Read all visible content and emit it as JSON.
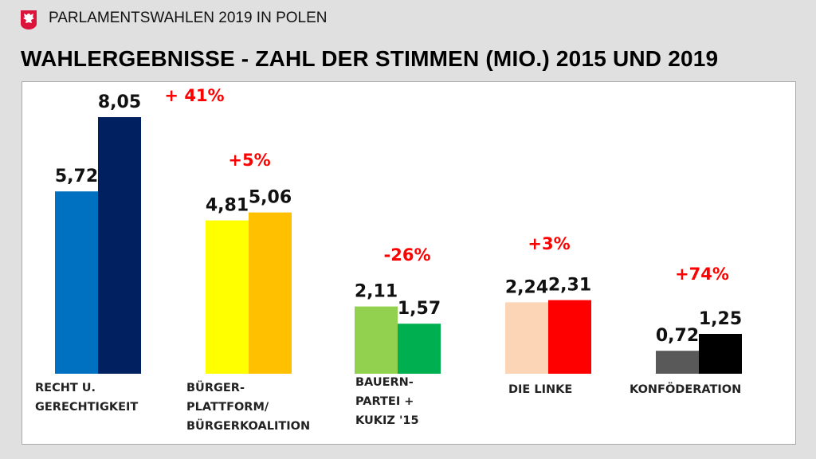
{
  "header": {
    "subtitle": "PARLAMENTSWAHLEN 2019 IN POLEN",
    "title": "WAHLERGEBNISSE - ZAHL DER STIMMEN (MIO.) 2015 UND 2019",
    "logo": "polish-eagle-emblem"
  },
  "chart_data": {
    "type": "bar",
    "title": "WAHLERGEBNISSE - ZAHL DER STIMMEN (MIO.) 2015 UND 2019",
    "categories": [
      [
        "RECHT U.",
        "GERECHTIGKEIT"
      ],
      [
        "BÜRGER-",
        "PLATTFORM/",
        "BÜRGERKOALITION"
      ],
      [
        "BAUERN-",
        "PARTEI +",
        "KUKIZ '15"
      ],
      [
        "DIE LINKE"
      ],
      [
        "KONFÖDERATION"
      ]
    ],
    "series": [
      {
        "values": [
          5.72,
          4.81,
          2.11,
          2.24,
          0.72
        ],
        "labels": [
          "5,72",
          "4,81",
          "2,11",
          "2,24",
          "0,72"
        ],
        "colors": [
          "#0070C0",
          "#FFFF00",
          "#92D050",
          "#FBD5B5",
          "#595959"
        ]
      },
      {
        "values": [
          8.05,
          5.06,
          1.57,
          2.31,
          1.25
        ],
        "labels": [
          "8,05",
          "5,06",
          "1,57",
          "2,31",
          "1,25"
        ],
        "colors": [
          "#002060",
          "#FFC000",
          "#00B050",
          "#FF0000",
          "#000000"
        ]
      }
    ],
    "changes": [
      "+ 41%",
      "+5%",
      "-26%",
      "+3%",
      "+74%"
    ],
    "change_color": "#FF0000",
    "ylim": [
      0,
      8.05
    ],
    "grid": false,
    "legend": "none"
  }
}
